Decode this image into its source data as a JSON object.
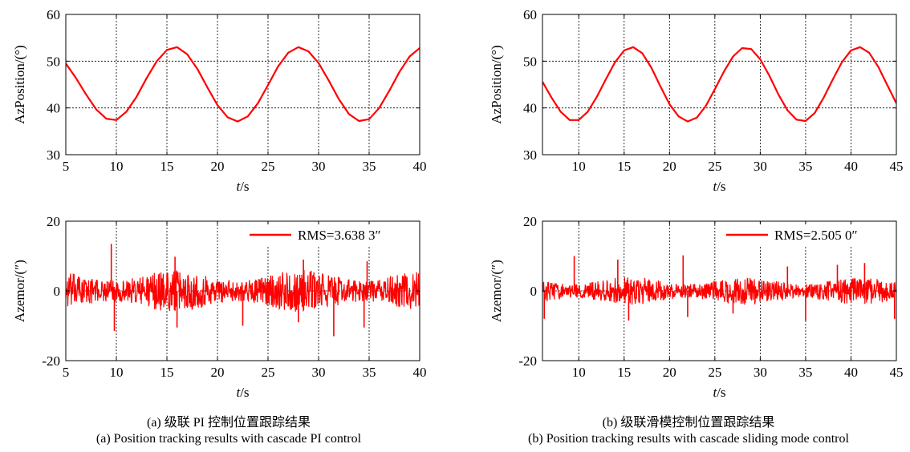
{
  "accent_color": "#ff0000",
  "panels": {
    "a": {
      "caption_cn": "(a) 级联 PI 控制位置跟踪结果",
      "caption_en": "(a) Position tracking results with cascade PI control"
    },
    "b": {
      "caption_cn": "(b) 级联滑模控制位置跟踪结果",
      "caption_en": "(b) Position tracking results with cascade sliding mode control"
    }
  },
  "chart_data": [
    {
      "id": "a-position",
      "type": "line",
      "xlabel_italic": "t",
      "xlabel_unit": "/s",
      "ylabel": "AzPosition/(°)",
      "xlim": [
        5,
        40
      ],
      "ylim": [
        30,
        60
      ],
      "xticks": [
        5,
        10,
        15,
        20,
        25,
        30,
        35,
        40
      ],
      "yticks": [
        30,
        40,
        50,
        60
      ],
      "grid": true,
      "series": [
        {
          "x": [
            5.0,
            6.0,
            7.0,
            8.0,
            9.0,
            10.0,
            11.0,
            12.0,
            13.0,
            14.0,
            15.0,
            16.0,
            17.0,
            18.0,
            19.0,
            20.0,
            21.0,
            22.0,
            23.0,
            24.0,
            25.0,
            26.0,
            27.0,
            28.0,
            29.0,
            30.0,
            31.0,
            32.0,
            33.0,
            34.0,
            35.0,
            36.0,
            37.0,
            38.0,
            39.0,
            40.0
          ],
          "y": [
            49.5,
            46.4,
            42.9,
            39.7,
            37.7,
            37.4,
            39.2,
            42.4,
            46.4,
            50.0,
            52.4,
            53.0,
            51.5,
            48.4,
            44.4,
            40.6,
            38.0,
            37.1,
            38.2,
            41.0,
            44.9,
            48.9,
            51.8,
            53.0,
            52.1,
            49.6,
            45.9,
            41.9,
            38.7,
            37.2,
            37.6,
            40.0,
            43.7,
            47.7,
            51.0,
            52.8
          ]
        }
      ]
    },
    {
      "id": "a-error",
      "type": "line",
      "xlabel_italic": "t",
      "xlabel_unit": "/s",
      "ylabel": "Azemor/(″)",
      "xlim": [
        5,
        40
      ],
      "ylim": [
        -20,
        20
      ],
      "xticks": [
        5,
        10,
        15,
        20,
        25,
        30,
        35,
        40
      ],
      "yticks": [
        -20,
        0,
        20
      ],
      "grid": true,
      "legend": {
        "label": "RMS=3.638 3″",
        "position": "top-right"
      },
      "noise": {
        "amplitude": 6,
        "spikes": [
          [
            9.5,
            13.5
          ],
          [
            9.8,
            -11.5
          ],
          [
            15.8,
            9.8
          ],
          [
            16.0,
            -10.5
          ],
          [
            22.5,
            -10.0
          ],
          [
            28.0,
            -9.0
          ],
          [
            28.5,
            9.0
          ],
          [
            31.5,
            -13.0
          ],
          [
            34.5,
            -10.5
          ],
          [
            34.8,
            8.5
          ]
        ]
      }
    },
    {
      "id": "b-position",
      "type": "line",
      "xlabel_italic": "t",
      "xlabel_unit": "/s",
      "ylabel": "AzPosition/(°)",
      "xlim": [
        6,
        45
      ],
      "ylim": [
        30,
        60
      ],
      "xticks": [
        10,
        15,
        20,
        25,
        30,
        35,
        40,
        45
      ],
      "yticks": [
        30,
        40,
        50,
        60
      ],
      "grid": true,
      "series": [
        {
          "x": [
            6.0,
            7.0,
            8.0,
            9.0,
            10.0,
            11.0,
            12.0,
            13.0,
            14.0,
            15.0,
            16.0,
            17.0,
            18.0,
            19.0,
            20.0,
            21.0,
            22.0,
            23.0,
            24.0,
            25.0,
            26.0,
            27.0,
            28.0,
            29.0,
            30.0,
            31.0,
            32.0,
            33.0,
            34.0,
            35.0,
            36.0,
            37.0,
            38.0,
            39.0,
            40.0,
            41.0,
            42.0,
            43.0,
            44.0,
            45.0
          ],
          "y": [
            45.6,
            42.2,
            39.2,
            37.4,
            37.4,
            39.2,
            42.4,
            46.2,
            49.8,
            52.3,
            53.0,
            51.7,
            48.6,
            44.6,
            40.8,
            38.2,
            37.1,
            37.9,
            40.4,
            44.0,
            47.8,
            51.0,
            52.8,
            52.6,
            50.4,
            46.9,
            42.9,
            39.5,
            37.5,
            37.2,
            38.9,
            42.2,
            46.1,
            49.8,
            52.3,
            53.0,
            51.8,
            48.8,
            44.9,
            41.0
          ]
        }
      ]
    },
    {
      "id": "b-error",
      "type": "line",
      "xlabel_italic": "t",
      "xlabel_unit": "/s",
      "ylabel": "Azemor/(″)",
      "xlim": [
        6,
        45
      ],
      "ylim": [
        -20,
        20
      ],
      "xticks": [
        10,
        15,
        20,
        25,
        30,
        35,
        40,
        45
      ],
      "yticks": [
        -20,
        0,
        20
      ],
      "grid": true,
      "legend": {
        "label": "RMS=2.505 0″",
        "position": "top-right"
      },
      "noise": {
        "amplitude": 4,
        "spikes": [
          [
            6.2,
            -8.0
          ],
          [
            9.5,
            10.0
          ],
          [
            14.3,
            9.0
          ],
          [
            15.5,
            -8.5
          ],
          [
            21.5,
            10.2
          ],
          [
            22.0,
            -7.5
          ],
          [
            27.0,
            -6.5
          ],
          [
            33.0,
            7.0
          ],
          [
            35.0,
            -8.5
          ],
          [
            38.5,
            7.5
          ],
          [
            41.5,
            8.0
          ],
          [
            44.8,
            -8.0
          ]
        ]
      }
    }
  ]
}
